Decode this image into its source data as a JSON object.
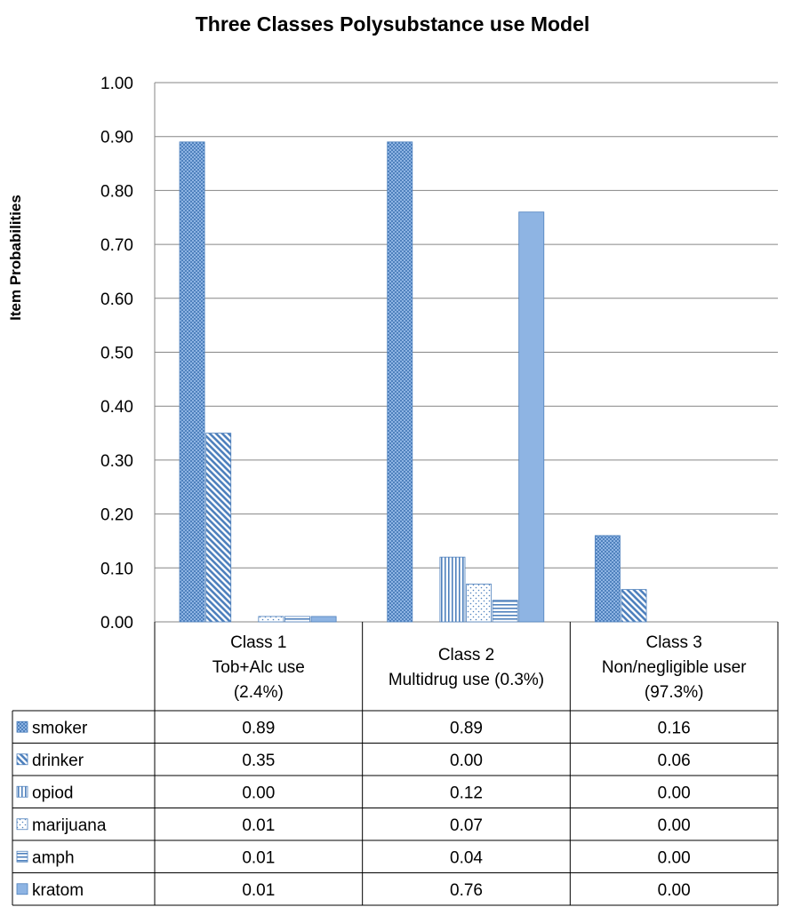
{
  "chart_data": {
    "type": "bar",
    "title": "Three Classes Polysubstance use Model",
    "ylabel": "Item Probabilities",
    "xlabel": "",
    "ylim": [
      0,
      1.0
    ],
    "yticks": [
      "0.00",
      "0.10",
      "0.20",
      "0.30",
      "0.40",
      "0.50",
      "0.60",
      "0.70",
      "0.80",
      "0.90",
      "1.00"
    ],
    "grid": true,
    "legend": "data-table-left",
    "categories": [
      [
        "Class 1",
        "Tob+Alc use",
        "(2.4%)"
      ],
      [
        "Class 2",
        "Multidrug use (0.3%)"
      ],
      [
        "Class 3",
        "Non/negligible user",
        "(97.3%)"
      ]
    ],
    "series": [
      {
        "name": "smoker",
        "pattern": "checker",
        "values": [
          0.89,
          0.89,
          0.16
        ],
        "labels": [
          "0.89",
          "0.89",
          "0.16"
        ]
      },
      {
        "name": "drinker",
        "pattern": "diagonal",
        "values": [
          0.35,
          0.0,
          0.06
        ],
        "labels": [
          "0.35",
          "0.00",
          "0.06"
        ]
      },
      {
        "name": "opiod",
        "pattern": "vertical",
        "values": [
          0.0,
          0.12,
          0.0
        ],
        "labels": [
          "0.00",
          "0.12",
          "0.00"
        ]
      },
      {
        "name": "marijuana",
        "pattern": "dots",
        "values": [
          0.01,
          0.07,
          0.0
        ],
        "labels": [
          "0.01",
          "0.07",
          "0.00"
        ]
      },
      {
        "name": "amph",
        "pattern": "horizontal",
        "values": [
          0.01,
          0.04,
          0.0
        ],
        "labels": [
          "0.01",
          "0.04",
          "0.00"
        ]
      },
      {
        "name": "kratom",
        "pattern": "solid",
        "values": [
          0.01,
          0.76,
          0.0
        ],
        "labels": [
          "0.01",
          "0.76",
          "0.00"
        ]
      }
    ],
    "colors": {
      "bar": "#8eb4e3",
      "bar_dark": "#4f81bd",
      "grid": "#868686",
      "axis": "#868686"
    }
  }
}
